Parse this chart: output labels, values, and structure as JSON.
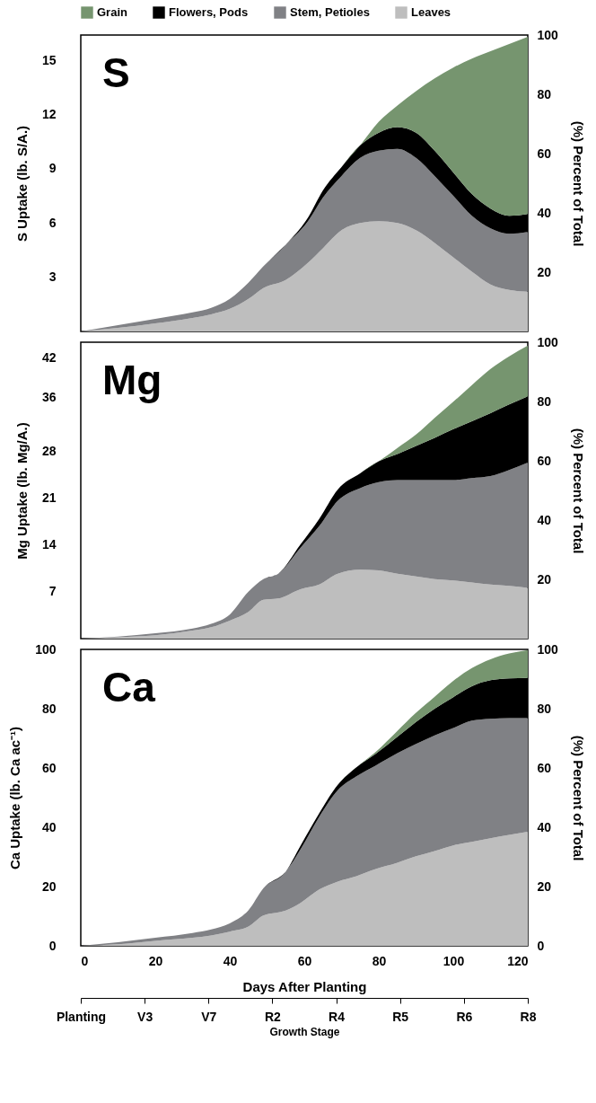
{
  "chart_data": [
    {
      "type": "area",
      "title": "S",
      "ylabel": "S Uptake (lb. S/A.)",
      "y2label": "(%) Percent of Total",
      "stacked": true,
      "legend": "top",
      "tick_labels": "y",
      "x": [
        0,
        10,
        20,
        30,
        35,
        40,
        45,
        49,
        55,
        61,
        65,
        70,
        75,
        80,
        85,
        90,
        95,
        100,
        105,
        110,
        115,
        120
      ],
      "xlim": [
        0,
        120
      ],
      "xticks": [
        0,
        20,
        40,
        60,
        80,
        100,
        120
      ],
      "ylim": [
        0,
        16.4
      ],
      "yticks": [
        3,
        6,
        9,
        12,
        15
      ],
      "y2lim": [
        0,
        100
      ],
      "y2ticks": [
        20,
        40,
        60,
        80,
        100
      ],
      "series": [
        {
          "name": "Leaves",
          "color": "#bebebe",
          "values": [
            0,
            0.2,
            0.45,
            0.75,
            0.95,
            1.25,
            1.8,
            2.4,
            2.85,
            3.8,
            4.6,
            5.6,
            6.0,
            6.1,
            6.0,
            5.6,
            4.9,
            4.1,
            3.3,
            2.6,
            2.3,
            2.2
          ]
        },
        {
          "name": "Stem, Petioles",
          "color": "#808185",
          "values": [
            0,
            0.15,
            0.25,
            0.3,
            0.35,
            0.55,
            0.9,
            1.2,
            1.95,
            2.3,
            2.8,
            3.0,
            3.6,
            3.9,
            4.1,
            4.0,
            3.7,
            3.4,
            3.1,
            3.1,
            3.1,
            3.3
          ]
        },
        {
          "name": "Flowers, Pods",
          "color": "#000000",
          "values": [
            0,
            0,
            0,
            0,
            0,
            0,
            0,
            0,
            0,
            0.2,
            0.4,
            0.5,
            0.7,
            1.0,
            1.2,
            1.4,
            1.4,
            1.3,
            1.2,
            1.1,
            1.0,
            1.0
          ]
        },
        {
          "name": "Grain",
          "color": "#76956f",
          "values": [
            0,
            0,
            0,
            0,
            0,
            0,
            0,
            0,
            0,
            0,
            0,
            0,
            0,
            0.6,
            1.2,
            2.3,
            4.0,
            5.8,
            7.5,
            8.7,
            9.5,
            9.8
          ]
        }
      ]
    },
    {
      "type": "area",
      "title": "Mg",
      "ylabel": "Mg Uptake (lb. Mg/A.)",
      "y2label": "(%) Percent of Total",
      "stacked": true,
      "tick_labels": "y",
      "x": [
        0,
        10,
        20,
        30,
        35,
        40,
        45,
        49,
        53,
        59,
        64,
        69,
        75,
        80,
        85,
        90,
        95,
        100,
        105,
        110,
        115,
        120
      ],
      "xlim": [
        0,
        120
      ],
      "xticks": [
        0,
        20,
        40,
        60,
        80,
        100,
        120
      ],
      "ylim": [
        0,
        44.3
      ],
      "yticks": [
        7,
        14,
        21,
        28,
        36,
        42
      ],
      "y2lim": [
        0,
        100
      ],
      "y2ticks": [
        20,
        40,
        60,
        80,
        100
      ],
      "series": [
        {
          "color": "#bebebe",
          "values": [
            0,
            0.2,
            0.5,
            1.2,
            1.7,
            2.7,
            4.0,
            5.8,
            6.0,
            7.4,
            8.1,
            9.7,
            10.3,
            10.2,
            9.7,
            9.3,
            8.9,
            8.7,
            8.4,
            8.1,
            7.9,
            7.6
          ]
        },
        {
          "color": "#808185",
          "values": [
            0,
            0.1,
            0.3,
            0.3,
            0.5,
            0.9,
            3.0,
            3.1,
            3.7,
            6.2,
            8.7,
            10.9,
            12.2,
            13.2,
            14.0,
            14.4,
            14.8,
            15.0,
            15.6,
            16.2,
            17.3,
            18.7
          ]
        },
        {
          "color": "#000000",
          "values": [
            0,
            0,
            0,
            0,
            0,
            0,
            0,
            0,
            0,
            0.5,
            1.1,
            1.7,
            2.2,
            3.1,
            3.9,
            5.1,
            6.3,
            7.6,
            8.5,
            9.4,
            9.8,
            9.9
          ]
        },
        {
          "color": "#76956f",
          "values": [
            0,
            0,
            0,
            0,
            0,
            0,
            0,
            0,
            0,
            0,
            0,
            0,
            0,
            0,
            0.9,
            1.7,
            3.0,
            4.1,
            5.4,
            6.6,
            7.2,
            7.6
          ]
        }
      ]
    },
    {
      "type": "area",
      "title": "Ca",
      "ylabel": "Ca Uptake (lb. Ca ac⁻¹)",
      "y2label": "(%) Percent of Total",
      "xlabel": "Days After Planting",
      "stacked": true,
      "x": [
        0,
        10,
        20,
        30,
        35,
        40,
        45,
        49,
        55,
        59,
        64,
        69,
        74,
        79,
        85,
        90,
        95,
        100,
        105,
        110,
        115,
        120
      ],
      "xlim": [
        0,
        120
      ],
      "xticks": [
        0,
        20,
        40,
        60,
        80,
        100,
        120
      ],
      "ylim": [
        0,
        100
      ],
      "yticks": [
        0,
        20,
        40,
        60,
        80,
        100
      ],
      "y2lim": [
        0,
        100
      ],
      "y2ticks": [
        0,
        20,
        40,
        60,
        80,
        100
      ],
      "series": [
        {
          "color": "#bebebe",
          "values": [
            0,
            0.5,
            1.7,
            2.7,
            3.5,
            4.8,
            6.5,
            10.2,
            11.9,
            14.5,
            19.0,
            21.7,
            23.5,
            25.8,
            28.0,
            30.2,
            32.0,
            33.9,
            35.1,
            36.3,
            37.4,
            38.5
          ]
        },
        {
          "color": "#808185",
          "values": [
            0,
            0.7,
            1.0,
            1.6,
            2.0,
            2.8,
            5.5,
            9.2,
            13.1,
            18.1,
            24.5,
            30.8,
            33.7,
            34.9,
            37.0,
            37.9,
            39.0,
            39.6,
            40.9,
            40.3,
            39.4,
            38.3
          ]
        },
        {
          "color": "#000000",
          "values": [
            0,
            0,
            0,
            0,
            0,
            0,
            0,
            0,
            0,
            1.2,
            1.2,
            1.8,
            3.0,
            3.9,
            5.5,
            7.4,
            9.0,
            10.4,
            11.6,
            13.0,
            13.4,
            13.6
          ]
        },
        {
          "color": "#76956f",
          "values": [
            0,
            0,
            0,
            0,
            0,
            0,
            0,
            0,
            0,
            0,
            0,
            0,
            0,
            0.6,
            2.0,
            3.1,
            4.0,
            5.5,
            6.1,
            7.1,
            8.4,
            9.4
          ]
        }
      ]
    },
    {
      "type": "other",
      "xlabel": "Growth Stage",
      "categories": [
        "Planting",
        "V3",
        "V7",
        "R2",
        "R4",
        "R5",
        "R6",
        "R8"
      ]
    }
  ]
}
